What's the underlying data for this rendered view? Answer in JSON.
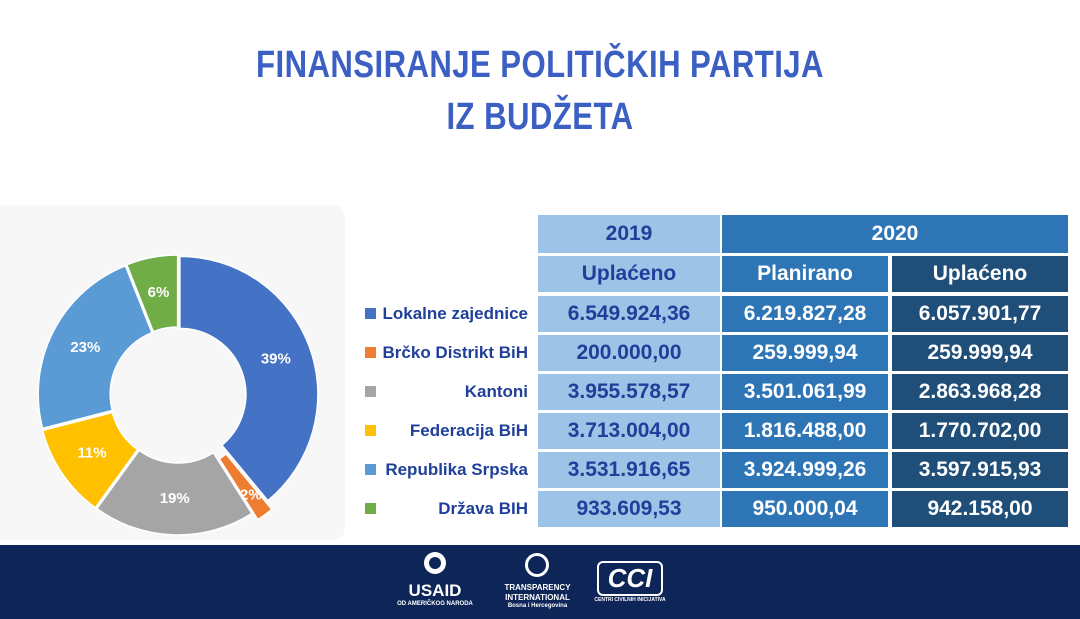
{
  "title": [
    "FINANSIRANJE POLITIČKIH PARTIJA",
    "IZ BUDŽETA"
  ],
  "chart_data": {
    "type": "pie",
    "categories": [
      "Lokalne zajednice",
      "Brčko Distrikt BiH",
      "Kantoni",
      "Federacija BiH",
      "Republika Srpska",
      "Država BIH"
    ],
    "values": [
      39,
      2,
      19,
      11,
      23,
      6
    ],
    "value_labels": [
      "39%",
      "2%",
      "19%",
      "11%",
      "23%",
      "6%"
    ],
    "colors": [
      "#4472c4",
      "#ed7d31",
      "#a5a5a5",
      "#ffc000",
      "#5b9bd5",
      "#70ad47"
    ]
  },
  "table": {
    "header": [
      "2019",
      "2020"
    ],
    "subheader": [
      "Uplaćeno",
      "Planirano",
      "Uplaćeno"
    ],
    "rows": [
      [
        "6.549.924,36",
        "6.219.827,28",
        "6.057.901,77"
      ],
      [
        "200.000,00",
        "259.999,94",
        "259.999,94"
      ],
      [
        "3.955.578,57",
        "3.501.061,99",
        "2.863.968,28"
      ],
      [
        "3.713.004,00",
        "1.816.488,00",
        "1.770.702,00"
      ],
      [
        "3.531.916,65",
        "3.924.999,26",
        "3.597.915,93"
      ],
      [
        "933.609,53",
        "950.000,04",
        "942.158,00"
      ]
    ]
  },
  "footer": {
    "usaid": "USAID",
    "usaid_sub": "OD AMERIČKOG NARODA",
    "ti": [
      "TRANSPARENCY",
      "INTERNATIONAL",
      "Bosna i Hercegovina"
    ],
    "cci": "CCI",
    "cci_sub": "CENTRI CIVILNIH INICIJATIVA"
  }
}
